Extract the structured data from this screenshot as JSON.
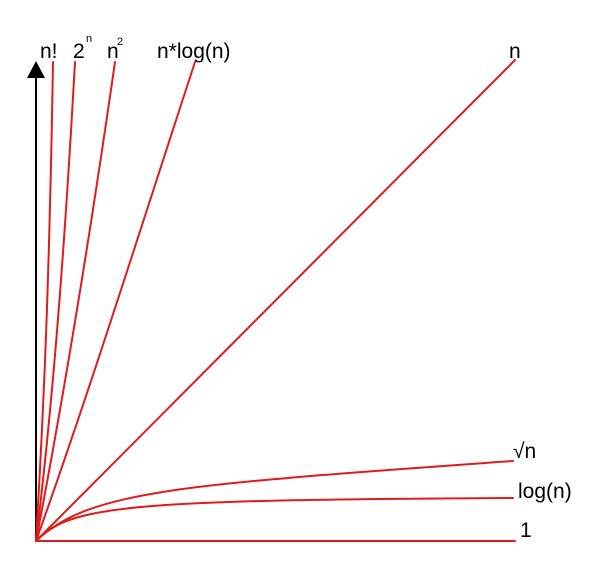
{
  "colors": {
    "curve": "#e01b1b",
    "axis": "#000000",
    "background": "#ffffff"
  },
  "labels": {
    "factorial": "n!",
    "exponential_base": "2",
    "exponential_exp": "n",
    "quadratic_base": "n",
    "quadratic_exp": "2",
    "linearithmic": "n*log(n)",
    "linear": "n",
    "sqrt": "√n",
    "logarithmic": "log(n)",
    "constant": "1"
  }
}
